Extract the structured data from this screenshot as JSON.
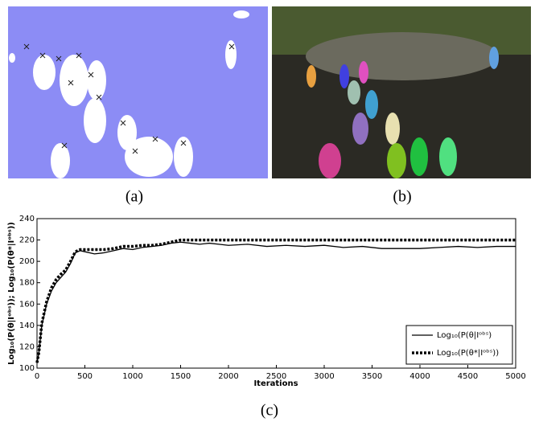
{
  "subfigure_labels": [
    "(a)",
    "(b)",
    "(c)"
  ],
  "chart_data": {
    "type": "line",
    "xlabel": "Iterations",
    "ylabel": "Log₁₀(P(θ|Iᵒᵇˢ)); Log₁₀(P(θ*|Iᵒᵇˢ))",
    "x": [
      0,
      20,
      50,
      100,
      150,
      200,
      250,
      300,
      350,
      400,
      450,
      500,
      600,
      700,
      800,
      900,
      1000,
      1100,
      1200,
      1300,
      1400,
      1500,
      1600,
      1700,
      1800,
      1900,
      2000,
      2200,
      2400,
      2600,
      2800,
      3000,
      3200,
      3400,
      3600,
      3800,
      4000,
      4200,
      4400,
      4600,
      4800,
      5000
    ],
    "series": [
      {
        "name": "Log₁₀(P(θ|Iᵒᵇˢ)",
        "color": "#000000",
        "style": "solid",
        "values": [
          105,
          115,
          140,
          160,
          172,
          180,
          185,
          190,
          198,
          208,
          210,
          209,
          207,
          208,
          210,
          212,
          211,
          213,
          214,
          215,
          217,
          218,
          217,
          216,
          217,
          216,
          215,
          216,
          214,
          215,
          214,
          215,
          213,
          214,
          212,
          212,
          212,
          213,
          214,
          213,
          214,
          214
        ]
      },
      {
        "name": "Log₁₀(P(θ*|Iᵒᵇˢ))",
        "color": "#000000",
        "style": "dotted",
        "values": [
          105,
          115,
          142,
          162,
          175,
          183,
          188,
          192,
          200,
          209,
          211,
          211,
          211,
          211,
          212,
          214,
          214,
          215,
          215,
          216,
          218,
          220,
          220,
          220,
          220,
          220,
          220,
          220,
          220,
          220,
          220,
          220,
          220,
          220,
          220,
          220,
          220,
          220,
          220,
          220,
          220,
          220
        ]
      }
    ],
    "xlim": [
      0,
      5000
    ],
    "xticks": [
      0,
      500,
      1000,
      1500,
      2000,
      2500,
      3000,
      3500,
      4000,
      4500,
      5000
    ],
    "ylim": [
      100,
      240
    ],
    "yticks": [
      100,
      120,
      140,
      160,
      180,
      200,
      220,
      240
    ],
    "legend": "lower right"
  }
}
